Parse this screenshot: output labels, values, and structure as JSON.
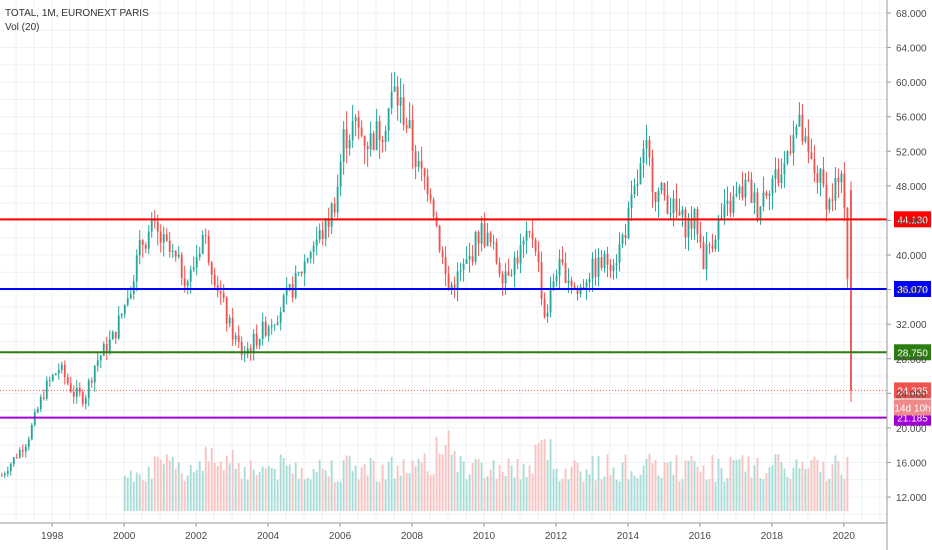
{
  "legend": {
    "title": "TOTAL, 1M, EURONEXT PARIS",
    "indicator": "Vol (20)"
  },
  "colors": {
    "up": "#26a69a",
    "down": "#ef5350",
    "vol_up": "#a7dcd6",
    "vol_down": "#f7c2c0",
    "grid": "#eef1f6",
    "axis_text": "#4a4a4a"
  },
  "chart_data": {
    "type": "candlestick",
    "title": "TOTAL, 1M, EURONEXT PARIS",
    "timeframe": "1M",
    "x_ticks": [
      "1998",
      "2000",
      "2002",
      "2004",
      "2006",
      "2008",
      "2010",
      "2012",
      "2014",
      "2016",
      "2018",
      "2020"
    ],
    "y_ticks": [
      "12.000",
      "16.000",
      "20.000",
      "24.000",
      "28.000",
      "32.000",
      "36.000",
      "40.000",
      "44.000",
      "48.000",
      "52.000",
      "56.000",
      "60.000",
      "64.000",
      "68.000"
    ],
    "ylim": [
      9.0,
      69.5
    ],
    "xlim": [
      1996.55,
      2021.2
    ],
    "grid": true,
    "price_path": [
      [
        1996.6,
        14.5
      ],
      [
        1997.3,
        18.5
      ],
      [
        1997.8,
        24.5
      ],
      [
        1998.2,
        27.0
      ],
      [
        1998.6,
        24.0
      ],
      [
        1998.9,
        23.5
      ],
      [
        1999.2,
        27.5
      ],
      [
        1999.7,
        30.5
      ],
      [
        2000.0,
        34.0
      ],
      [
        2000.5,
        41.5
      ],
      [
        2000.8,
        43.0
      ],
      [
        2001.3,
        40.0
      ],
      [
        2001.8,
        37.0
      ],
      [
        2002.2,
        42.5
      ],
      [
        2002.5,
        38.0
      ],
      [
        2002.9,
        32.0
      ],
      [
        2003.3,
        28.5
      ],
      [
        2003.8,
        31.0
      ],
      [
        2004.3,
        33.5
      ],
      [
        2004.8,
        37.0
      ],
      [
        2005.2,
        41.0
      ],
      [
        2005.6,
        43.0
      ],
      [
        2005.9,
        47.0
      ],
      [
        2006.1,
        53.5
      ],
      [
        2006.4,
        55.0
      ],
      [
        2006.8,
        53.0
      ],
      [
        2007.2,
        55.0
      ],
      [
        2007.5,
        59.0
      ],
      [
        2007.8,
        56.0
      ],
      [
        2008.0,
        53.0
      ],
      [
        2008.2,
        49.5
      ],
      [
        2008.5,
        48.0
      ],
      [
        2008.7,
        43.0
      ],
      [
        2009.0,
        36.0
      ],
      [
        2009.3,
        37.5
      ],
      [
        2009.6,
        39.5
      ],
      [
        2009.9,
        43.0
      ],
      [
        2010.2,
        41.0
      ],
      [
        2010.5,
        38.0
      ],
      [
        2010.8,
        39.0
      ],
      [
        2011.1,
        41.0
      ],
      [
        2011.4,
        42.5
      ],
      [
        2011.7,
        32.5
      ],
      [
        2012.0,
        38.5
      ],
      [
        2012.3,
        38.0
      ],
      [
        2012.6,
        35.5
      ],
      [
        2012.9,
        38.0
      ],
      [
        2013.3,
        39.0
      ],
      [
        2013.7,
        40.0
      ],
      [
        2014.0,
        44.0
      ],
      [
        2014.3,
        49.0
      ],
      [
        2014.5,
        52.0
      ],
      [
        2014.8,
        47.0
      ],
      [
        2015.0,
        47.0
      ],
      [
        2015.3,
        45.0
      ],
      [
        2015.6,
        43.5
      ],
      [
        2015.9,
        44.0
      ],
      [
        2016.1,
        39.5
      ],
      [
        2016.5,
        43.5
      ],
      [
        2016.9,
        46.0
      ],
      [
        2017.3,
        48.0
      ],
      [
        2017.6,
        45.5
      ],
      [
        2017.9,
        48.5
      ],
      [
        2018.3,
        49.5
      ],
      [
        2018.6,
        55.0
      ],
      [
        2018.8,
        54.5
      ],
      [
        2019.0,
        51.0
      ],
      [
        2019.3,
        49.0
      ],
      [
        2019.6,
        46.0
      ],
      [
        2019.8,
        48.5
      ],
      [
        2020.0,
        47.5
      ],
      [
        2020.15,
        40.5
      ],
      [
        2020.2,
        24.3
      ]
    ],
    "last_price": 24.335,
    "countdown": "14d 10h",
    "volume_indicator": "Vol (20)",
    "horizontal_lines": [
      {
        "value": 44.13,
        "label": "44.130",
        "color": "#ff0000"
      },
      {
        "value": 36.07,
        "label": "36.070",
        "color": "#0000ff"
      },
      {
        "value": 28.75,
        "label": "28.750",
        "color": "#2e7d12"
      },
      {
        "value": 21.185,
        "label": "21.185",
        "color": "#a000d6"
      }
    ],
    "last_price_color": "#ef5350"
  }
}
